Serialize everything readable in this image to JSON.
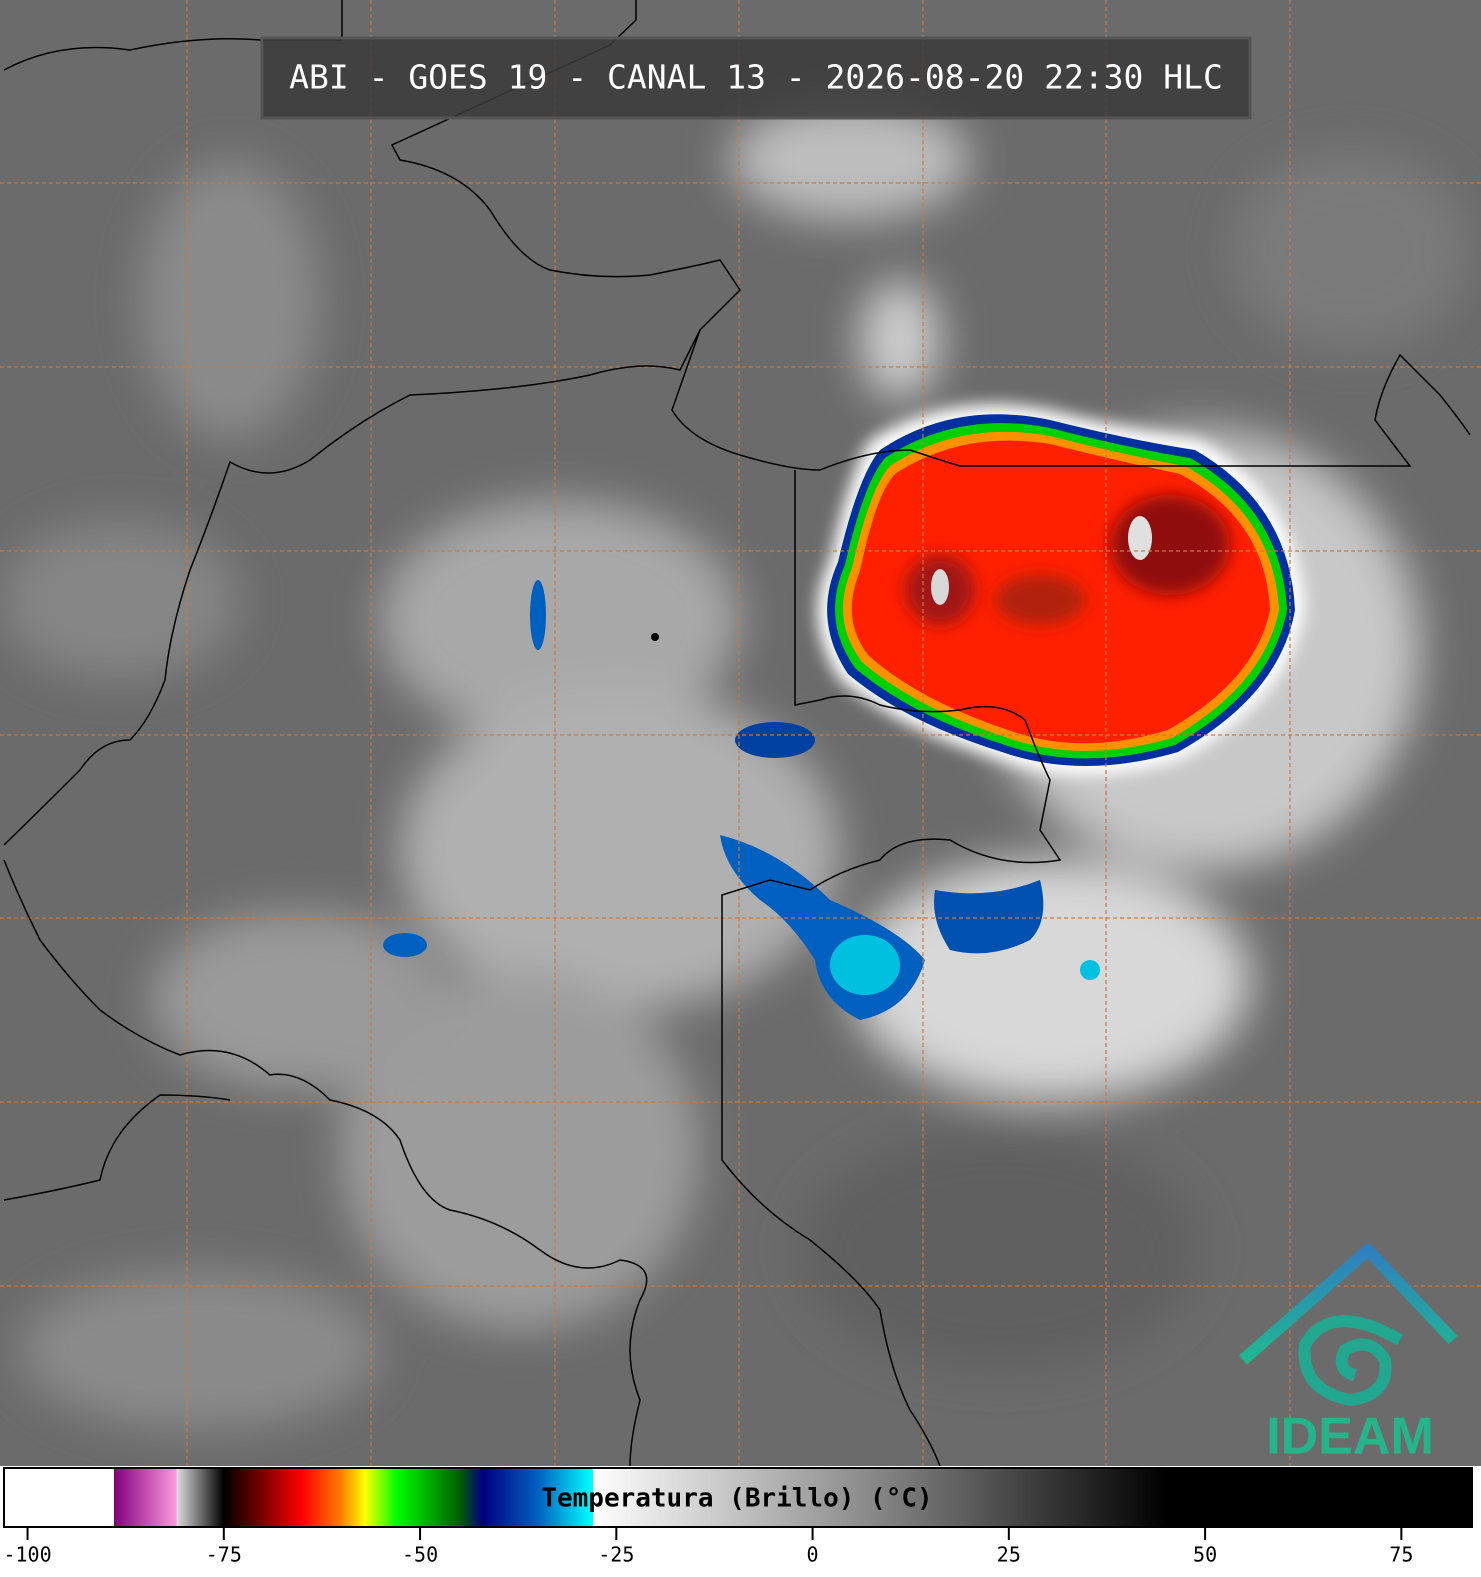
{
  "header": {
    "title": "ABI - GOES 19 - CANAL 13 - 2026-08-20 22:30 HLC"
  },
  "colorbar": {
    "label": "Temperatura (Brillo) (°C)",
    "xlim": [
      -103,
      84
    ],
    "ticks": [
      -100,
      -75,
      -50,
      -25,
      0,
      25,
      50,
      75
    ],
    "colormap": [
      [
        -103,
        "#ffffff"
      ],
      [
        -89,
        "#ffffff"
      ],
      [
        -89,
        "#800080"
      ],
      [
        -81,
        "#ff99dd"
      ],
      [
        -81,
        "#dddddd"
      ],
      [
        -75,
        "#000000"
      ],
      [
        -70,
        "#800000"
      ],
      [
        -65,
        "#ff0000"
      ],
      [
        -60,
        "#ff8000"
      ],
      [
        -57,
        "#ffff00"
      ],
      [
        -53,
        "#00ff00"
      ],
      [
        -45,
        "#006000"
      ],
      [
        -42,
        "#000080"
      ],
      [
        -35,
        "#0060c0"
      ],
      [
        -28,
        "#00ffff"
      ],
      [
        -28,
        "#ffffff"
      ],
      [
        10,
        "#808080"
      ],
      [
        45,
        "#000000"
      ],
      [
        84,
        "#000000"
      ]
    ]
  },
  "logo": {
    "text": "IDEAM"
  }
}
